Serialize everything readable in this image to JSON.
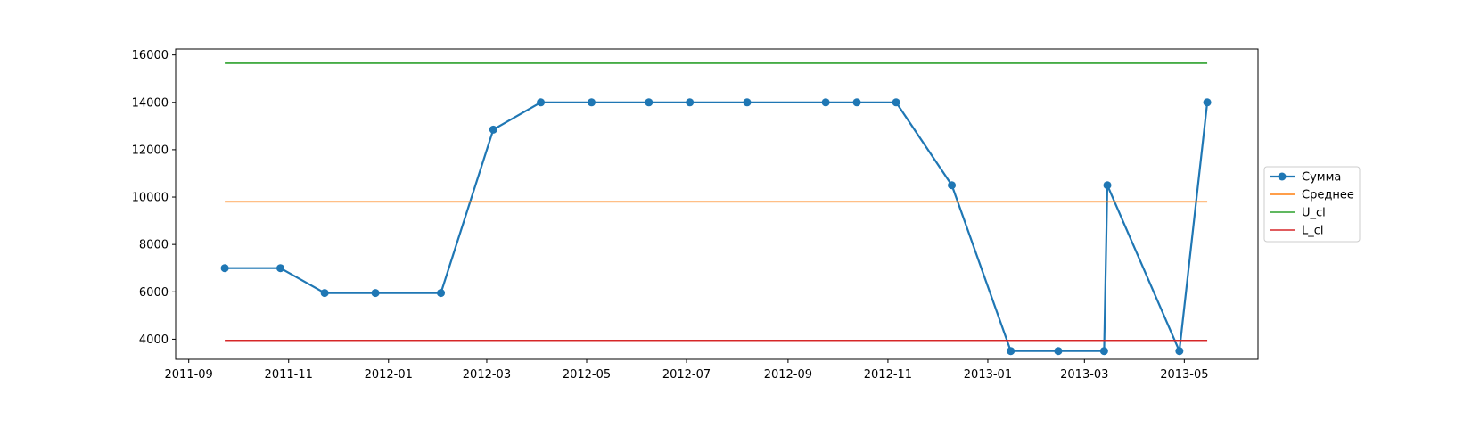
{
  "chart_data": {
    "type": "line",
    "title": "",
    "xlabel": "",
    "ylabel": "",
    "x": [
      "2011-09-23",
      "2011-10-27",
      "2011-11-23",
      "2011-12-24",
      "2012-02-02",
      "2012-03-05",
      "2012-04-03",
      "2012-05-04",
      "2012-06-08",
      "2012-07-03",
      "2012-08-07",
      "2012-09-24",
      "2012-10-13",
      "2012-11-06",
      "2012-12-10",
      "2013-01-15",
      "2013-02-13",
      "2013-03-13",
      "2013-03-15",
      "2013-04-28",
      "2013-05-15"
    ],
    "series": [
      {
        "name": "Сумма",
        "color": "#1f77b4",
        "marker": "circle",
        "values": [
          7000,
          7000,
          5950,
          5950,
          5950,
          12850,
          14000,
          14000,
          14000,
          14000,
          14000,
          14000,
          14000,
          14000,
          10500,
          3500,
          3500,
          3500,
          10500,
          3500,
          14000
        ]
      },
      {
        "name": "Среднее",
        "color": "#ff7f0e",
        "marker": "none",
        "constant": 9800
      },
      {
        "name": "U_cl",
        "color": "#2ca02c",
        "marker": "none",
        "constant": 15650
      },
      {
        "name": "L_cl",
        "color": "#d62728",
        "marker": "none",
        "constant": 3950
      }
    ],
    "xlim": [
      "2011-08-24",
      "2013-06-15"
    ],
    "ylim": [
      3150,
      16250
    ],
    "xticks": [
      "2011-09",
      "2011-11",
      "2012-01",
      "2012-03",
      "2012-05",
      "2012-07",
      "2012-09",
      "2012-11",
      "2013-01",
      "2013-03",
      "2013-05"
    ],
    "yticks": [
      4000,
      6000,
      8000,
      10000,
      12000,
      14000,
      16000
    ],
    "grid": false,
    "legend_position": "outside-right"
  }
}
